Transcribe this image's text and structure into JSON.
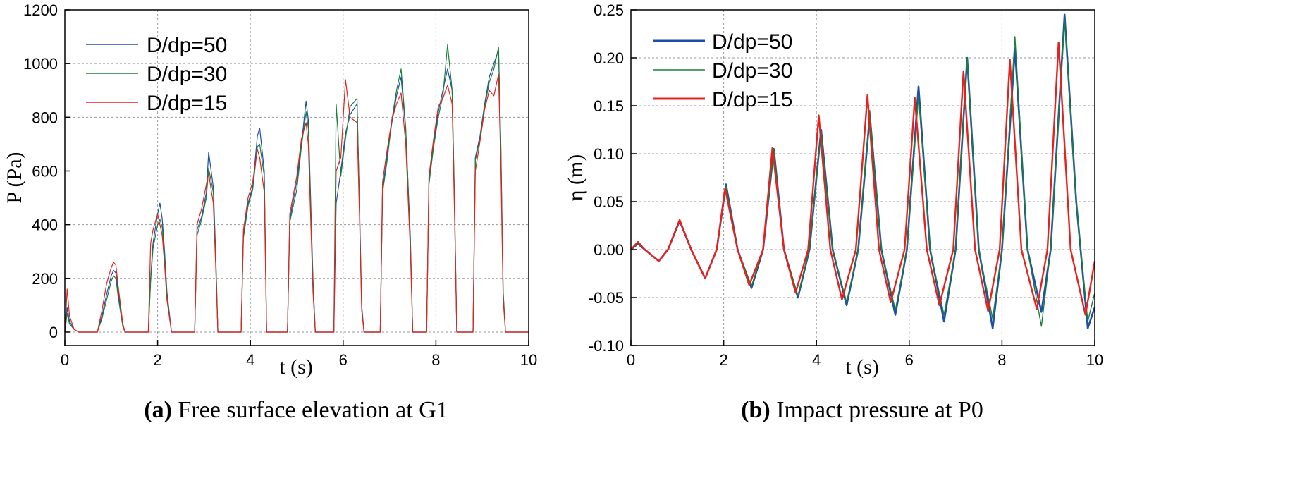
{
  "chart_data": [
    {
      "type": "line",
      "caption_label": "(a)",
      "caption_text": " Free surface elevation at G1",
      "xlabel": "t (s)",
      "ylabel": "P (Pa)",
      "xlim": [
        0,
        10
      ],
      "ylim": [
        -50,
        1200
      ],
      "xticks": [
        "0",
        "2",
        "4",
        "6",
        "8",
        "10"
      ],
      "xtick_values": [
        0,
        2,
        4,
        6,
        8,
        10
      ],
      "yticks": [
        "0",
        "200",
        "400",
        "600",
        "800",
        "1000",
        "1200"
      ],
      "ytick_values": [
        0,
        200,
        400,
        600,
        800,
        1000,
        1200
      ],
      "grid": true,
      "legend_position": "top-left",
      "series": [
        {
          "name": "D/dp=50",
          "color": "#1f4ea8",
          "x": [
            0,
            0.05,
            0.1,
            0.2,
            0.3,
            0.5,
            0.7,
            0.8,
            0.9,
            1.0,
            1.05,
            1.1,
            1.15,
            1.25,
            1.3,
            1.8,
            1.85,
            1.9,
            2.0,
            2.05,
            2.1,
            2.15,
            2.2,
            2.3,
            2.4,
            2.8,
            2.85,
            2.95,
            3.05,
            3.1,
            3.2,
            3.25,
            3.3,
            3.4,
            3.8,
            3.85,
            3.95,
            4.05,
            4.15,
            4.2,
            4.3,
            4.35,
            4.4,
            4.8,
            4.85,
            5.0,
            5.1,
            5.2,
            5.25,
            5.35,
            5.4,
            5.8,
            5.85,
            5.95,
            6.05,
            6.15,
            6.3,
            6.35,
            6.4,
            6.45,
            6.5,
            6.8,
            6.85,
            6.95,
            7.05,
            7.15,
            7.25,
            7.35,
            7.45,
            7.5,
            7.8,
            7.85,
            7.95,
            8.05,
            8.15,
            8.25,
            8.35,
            8.4,
            8.45,
            8.5,
            8.8,
            8.85,
            8.95,
            9.05,
            9.15,
            9.25,
            9.35,
            9.4,
            9.45,
            9.5,
            10.0
          ],
          "y": [
            0,
            90,
            40,
            10,
            0,
            0,
            0,
            60,
            140,
            210,
            230,
            220,
            150,
            20,
            0,
            0,
            200,
            330,
            440,
            480,
            420,
            300,
            150,
            0,
            0,
            0,
            380,
            430,
            520,
            670,
            540,
            300,
            0,
            0,
            0,
            360,
            480,
            540,
            730,
            760,
            600,
            0,
            0,
            0,
            420,
            560,
            700,
            860,
            790,
            200,
            0,
            0,
            480,
            600,
            740,
            810,
            850,
            500,
            100,
            0,
            0,
            0,
            530,
            660,
            780,
            880,
            950,
            750,
            350,
            0,
            0,
            560,
            700,
            820,
            900,
            980,
            900,
            500,
            0,
            0,
            0,
            650,
            730,
            850,
            950,
            1000,
            1050,
            700,
            150,
            0,
            0
          ]
        },
        {
          "name": "D/dp=30",
          "color": "#1a7f3c",
          "x": [
            0,
            0.05,
            0.1,
            0.2,
            0.3,
            0.5,
            0.7,
            0.8,
            0.9,
            1.0,
            1.05,
            1.1,
            1.15,
            1.25,
            1.3,
            1.8,
            1.85,
            1.9,
            2.0,
            2.05,
            2.1,
            2.15,
            2.2,
            2.3,
            2.4,
            2.8,
            2.85,
            2.95,
            3.05,
            3.1,
            3.2,
            3.25,
            3.3,
            3.4,
            3.8,
            3.85,
            3.95,
            4.05,
            4.15,
            4.2,
            4.3,
            4.35,
            4.4,
            4.8,
            4.85,
            5.0,
            5.1,
            5.2,
            5.25,
            5.35,
            5.4,
            5.8,
            5.85,
            5.95,
            6.05,
            6.15,
            6.3,
            6.35,
            6.4,
            6.45,
            6.5,
            6.8,
            6.85,
            6.95,
            7.05,
            7.15,
            7.25,
            7.35,
            7.45,
            7.5,
            7.8,
            7.85,
            7.95,
            8.05,
            8.15,
            8.25,
            8.35,
            8.4,
            8.45,
            8.5,
            8.8,
            8.85,
            8.95,
            9.05,
            9.15,
            9.25,
            9.35,
            9.4,
            9.45,
            9.5,
            10.0
          ],
          "y": [
            0,
            70,
            30,
            10,
            0,
            0,
            0,
            50,
            120,
            190,
            210,
            200,
            130,
            20,
            0,
            0,
            190,
            310,
            400,
            420,
            390,
            280,
            140,
            0,
            0,
            0,
            360,
            420,
            500,
            610,
            520,
            280,
            0,
            0,
            0,
            350,
            470,
            530,
            690,
            700,
            580,
            0,
            0,
            0,
            410,
            530,
            690,
            820,
            760,
            180,
            0,
            0,
            850,
            580,
            720,
            840,
            870,
            480,
            90,
            0,
            0,
            0,
            520,
            640,
            790,
            900,
            980,
            760,
            330,
            0,
            0,
            550,
            690,
            800,
            880,
            1070,
            900,
            480,
            0,
            0,
            0,
            640,
            720,
            840,
            930,
            980,
            1060,
            680,
            140,
            0,
            0
          ]
        },
        {
          "name": "D/dp=15",
          "color": "#e8201e",
          "x": [
            0,
            0.05,
            0.1,
            0.2,
            0.3,
            0.5,
            0.7,
            0.8,
            0.9,
            1.0,
            1.05,
            1.1,
            1.15,
            1.25,
            1.3,
            1.8,
            1.85,
            1.9,
            2.0,
            2.05,
            2.1,
            2.15,
            2.2,
            2.3,
            2.4,
            2.8,
            2.85,
            2.95,
            3.05,
            3.1,
            3.2,
            3.25,
            3.3,
            3.4,
            3.8,
            3.85,
            3.95,
            4.05,
            4.15,
            4.2,
            4.3,
            4.35,
            4.4,
            4.8,
            4.85,
            5.0,
            5.1,
            5.2,
            5.25,
            5.35,
            5.4,
            5.8,
            5.85,
            5.95,
            6.05,
            6.15,
            6.3,
            6.35,
            6.4,
            6.45,
            6.5,
            6.8,
            6.85,
            6.95,
            7.05,
            7.15,
            7.25,
            7.35,
            7.45,
            7.5,
            7.8,
            7.85,
            7.95,
            8.05,
            8.15,
            8.25,
            8.35,
            8.4,
            8.45,
            8.5,
            8.8,
            8.85,
            8.95,
            9.05,
            9.15,
            9.25,
            9.35,
            9.4,
            9.45,
            9.5,
            10.0
          ],
          "y": [
            0,
            160,
            60,
            10,
            0,
            0,
            0,
            80,
            180,
            240,
            260,
            250,
            170,
            30,
            0,
            0,
            330,
            380,
            440,
            400,
            360,
            250,
            120,
            0,
            0,
            0,
            400,
            460,
            550,
            590,
            480,
            250,
            0,
            0,
            0,
            380,
            500,
            560,
            680,
            650,
            520,
            0,
            0,
            0,
            440,
            580,
            720,
            780,
            700,
            150,
            0,
            0,
            600,
            650,
            940,
            800,
            780,
            450,
            80,
            0,
            0,
            0,
            560,
            680,
            790,
            850,
            890,
            700,
            300,
            0,
            0,
            580,
            720,
            840,
            870,
            920,
            850,
            450,
            0,
            0,
            0,
            600,
            710,
            830,
            900,
            880,
            960,
            620,
            120,
            0,
            0
          ]
        }
      ]
    },
    {
      "type": "line",
      "caption_label": "(b)",
      "caption_text": " Impact pressure at P0",
      "xlabel": "t (s)",
      "ylabel": "η (m)",
      "xlim": [
        0,
        10
      ],
      "ylim": [
        -0.1,
        0.25
      ],
      "xticks": [
        "0",
        "2",
        "4",
        "6",
        "8",
        "10"
      ],
      "xtick_values": [
        0,
        2,
        4,
        6,
        8,
        10
      ],
      "yticks": [
        "-0.10",
        "-0.05",
        "0.00",
        "0.05",
        "0.10",
        "0.15",
        "0.20",
        "0.25"
      ],
      "ytick_values": [
        -0.1,
        -0.05,
        0,
        0.05,
        0.1,
        0.15,
        0.2,
        0.25
      ],
      "grid": true,
      "legend_position": "top-left",
      "series": [
        {
          "name": "D/dp=50",
          "color": "#1f4ea8",
          "x": [
            0,
            0.15,
            0.3,
            0.6,
            0.8,
            1.05,
            1.3,
            1.6,
            1.85,
            2.05,
            2.3,
            2.6,
            2.85,
            3.08,
            3.3,
            3.6,
            3.85,
            4.1,
            4.35,
            4.65,
            4.9,
            5.15,
            5.4,
            5.7,
            5.95,
            6.2,
            6.45,
            6.75,
            7.0,
            7.25,
            7.5,
            7.8,
            8.0,
            8.28,
            8.55,
            8.85,
            9.05,
            9.35,
            9.6,
            9.85,
            10.0
          ],
          "y": [
            0,
            0.006,
            0.0,
            -0.012,
            0.0,
            0.03,
            0.0,
            -0.03,
            0.0,
            0.068,
            0.0,
            -0.04,
            0.0,
            0.105,
            0.0,
            -0.05,
            0.0,
            0.125,
            0.0,
            -0.058,
            0.0,
            0.14,
            0.0,
            -0.068,
            0.0,
            0.17,
            0.0,
            -0.075,
            0.0,
            0.2,
            0.0,
            -0.082,
            0.0,
            0.21,
            0.0,
            -0.065,
            0.0,
            0.245,
            0.05,
            -0.082,
            -0.06
          ]
        },
        {
          "name": "D/dp=30",
          "color": "#1a7f3c",
          "x": [
            0,
            0.15,
            0.3,
            0.6,
            0.8,
            1.05,
            1.3,
            1.6,
            1.85,
            2.05,
            2.3,
            2.6,
            2.85,
            3.08,
            3.3,
            3.6,
            3.85,
            4.1,
            4.35,
            4.65,
            4.9,
            5.15,
            5.4,
            5.7,
            5.95,
            6.2,
            6.45,
            6.75,
            7.0,
            7.25,
            7.5,
            7.8,
            8.0,
            8.28,
            8.55,
            8.85,
            9.05,
            9.35,
            9.6,
            9.85,
            10.0
          ],
          "y": [
            0,
            0.006,
            0.0,
            -0.012,
            0.0,
            0.03,
            0.0,
            -0.03,
            0.0,
            0.066,
            0.0,
            -0.038,
            0.0,
            0.105,
            0.0,
            -0.048,
            0.0,
            0.122,
            0.0,
            -0.055,
            0.0,
            0.145,
            0.0,
            -0.063,
            0.0,
            0.16,
            0.0,
            -0.068,
            0.0,
            0.2,
            0.0,
            -0.072,
            0.0,
            0.222,
            0.0,
            -0.08,
            0.0,
            0.24,
            0.05,
            -0.075,
            -0.045
          ]
        },
        {
          "name": "D/dp=15",
          "color": "#e8201e",
          "x": [
            0,
            0.15,
            0.3,
            0.6,
            0.8,
            1.05,
            1.3,
            1.6,
            1.85,
            2.03,
            2.3,
            2.55,
            2.85,
            3.05,
            3.3,
            3.55,
            3.82,
            4.05,
            4.3,
            4.55,
            4.85,
            5.1,
            5.35,
            5.6,
            5.9,
            6.12,
            6.38,
            6.65,
            6.95,
            7.17,
            7.42,
            7.7,
            7.95,
            8.17,
            8.42,
            8.75,
            8.98,
            9.22,
            9.48,
            9.8,
            10.0
          ],
          "y": [
            0,
            0.008,
            0.0,
            -0.012,
            0.0,
            0.031,
            0.0,
            -0.03,
            0.0,
            0.064,
            0.0,
            -0.037,
            0.0,
            0.106,
            0.0,
            -0.045,
            0.0,
            0.14,
            0.0,
            -0.052,
            0.0,
            0.161,
            0.0,
            -0.055,
            0.0,
            0.158,
            0.0,
            -0.058,
            0.0,
            0.186,
            0.0,
            -0.064,
            0.0,
            0.198,
            0.0,
            -0.062,
            0.0,
            0.216,
            0.0,
            -0.068,
            -0.012
          ]
        }
      ]
    }
  ]
}
